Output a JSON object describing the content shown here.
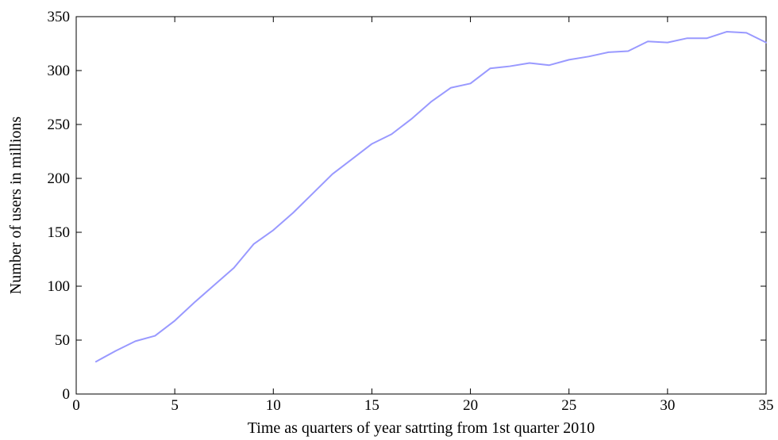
{
  "chart_data": {
    "type": "line",
    "title": "",
    "xlabel": "Time as quarters of year satrting from 1st quarter 2010",
    "ylabel": "Number of users in millions",
    "xlim": [
      0,
      35
    ],
    "ylim": [
      0,
      350
    ],
    "xticks": [
      0,
      5,
      10,
      15,
      20,
      25,
      30,
      35
    ],
    "yticks": [
      0,
      50,
      100,
      150,
      200,
      250,
      300,
      350
    ],
    "grid": false,
    "series": [
      {
        "color": "#9999ff",
        "x": [
          1,
          2,
          3,
          4,
          5,
          6,
          7,
          8,
          9,
          10,
          11,
          12,
          13,
          14,
          15,
          16,
          17,
          18,
          19,
          20,
          21,
          22,
          23,
          24,
          25,
          26,
          27,
          28,
          29,
          30,
          31,
          32,
          33,
          34,
          35
        ],
        "values": [
          30,
          40,
          49,
          54,
          68,
          85,
          101,
          117,
          139,
          152,
          168,
          186,
          204,
          218,
          232,
          241,
          255,
          271,
          284,
          288,
          302,
          304,
          307,
          305,
          310,
          313,
          317,
          318,
          327,
          326,
          330,
          330,
          336,
          335,
          326
        ]
      }
    ]
  }
}
